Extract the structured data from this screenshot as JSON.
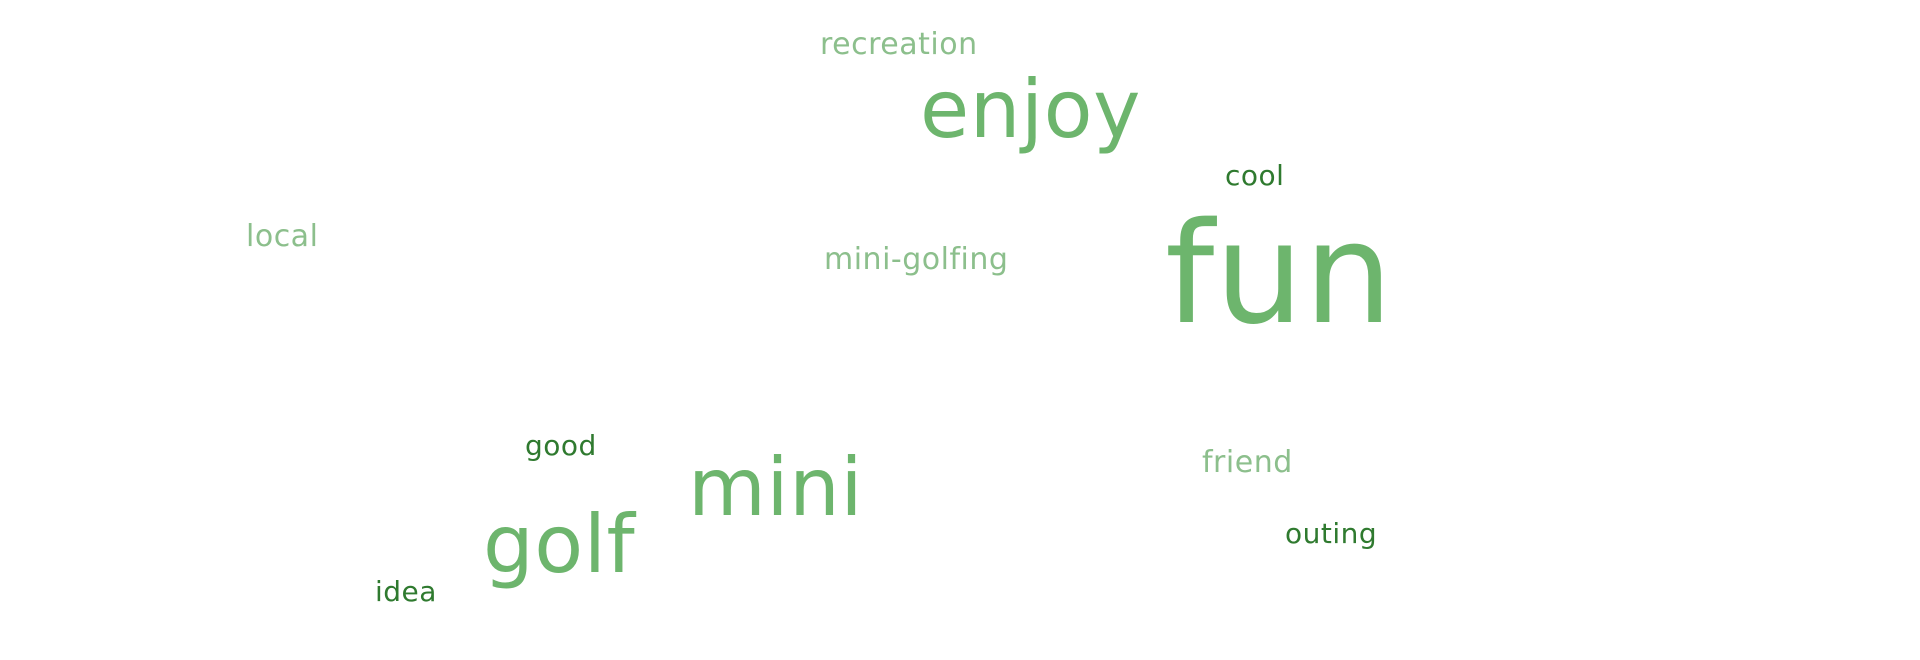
{
  "words": {
    "recreation": "recreation",
    "enjoy": "enjoy",
    "cool": "cool",
    "local": "local",
    "mini_golfing": "mini-golfing",
    "fun": "fun",
    "good": "good",
    "mini": "mini",
    "friend": "friend",
    "golf": "golf",
    "outing": "outing",
    "idea": "idea"
  },
  "colors": {
    "medium_green": "#6db56d",
    "light_green": "#8cbf8c",
    "dark_green": "#2f7a2f",
    "background": "#ffffff"
  }
}
